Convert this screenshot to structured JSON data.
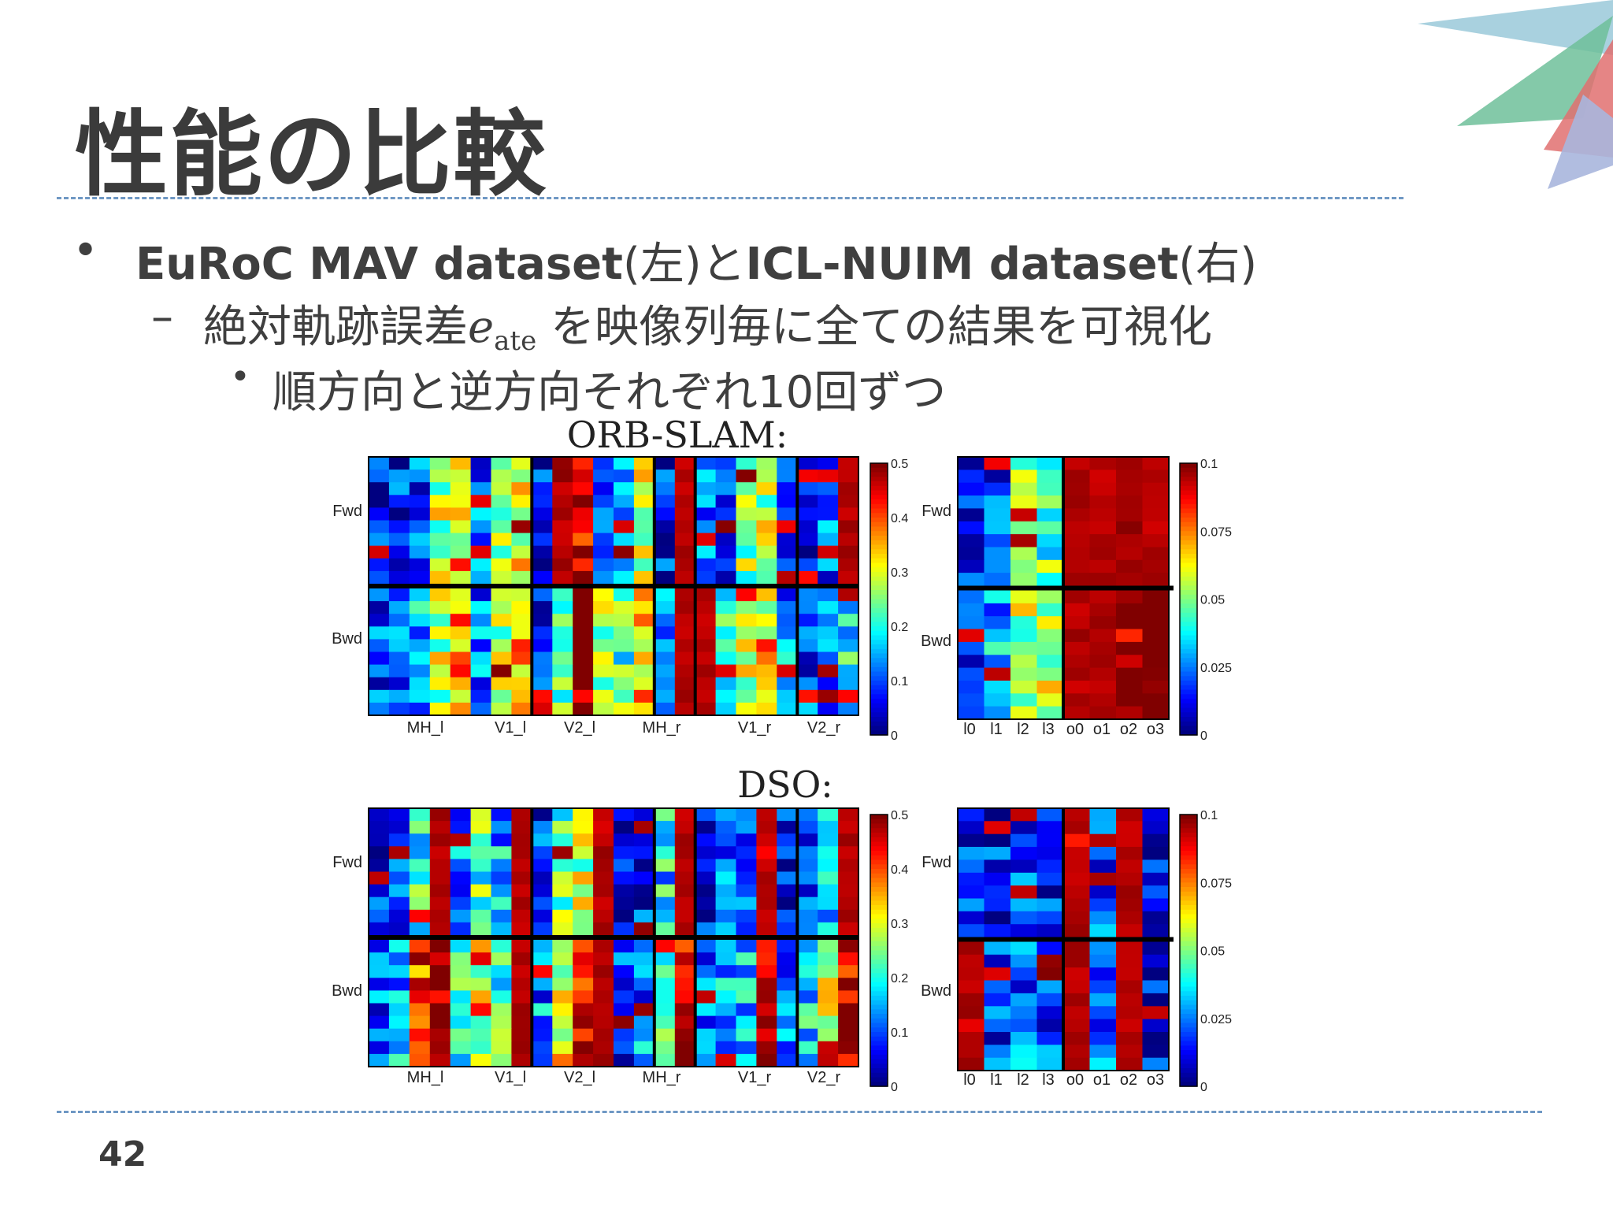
{
  "slide": {
    "title": "性能の比較",
    "bullet1_bold1": "EuRoC MAV dataset",
    "bullet1_norm1": "(左)と",
    "bullet1_bold2": "ICL-NUIM dataset",
    "bullet1_norm2": "(右)",
    "bullet2_pre": "絶対軌跡誤差",
    "bullet2_var": "e",
    "bullet2_sub": "ate",
    "bullet2_post": " を映像列毎に全ての結果を可視化",
    "bullet3": "順方向と逆方向それぞれ10回ずつ",
    "bullet_dot": "•",
    "bullet_dash": "–",
    "slide_number": "42"
  },
  "colors": {
    "title": "#3b3b3b",
    "text": "#3f3f3f",
    "rule": "#6f98c4",
    "deco": [
      "#9ac9d9",
      "#6fbf9a",
      "#e07070",
      "#a9b6dd"
    ]
  },
  "chart_data": [
    {
      "type": "heatmap",
      "title": "ORB-SLAM:",
      "dataset": "EuRoC MAV",
      "rows": [
        "Fwd",
        "Bwd"
      ],
      "column_groups": [
        "MH_l",
        "V1_l",
        "V2_l",
        "MH_r",
        "V1_r",
        "V2_r"
      ],
      "colorbar_ticks": [
        "0.5",
        "0.4",
        "0.3",
        "0.2",
        "0.1",
        "0"
      ],
      "colorbar_range": [
        0,
        0.5
      ],
      "colormap": "jet",
      "fwd_saturated_columns": [
        9,
        15,
        23
      ],
      "bwd_saturated_columns": [
        15,
        16
      ]
    },
    {
      "type": "heatmap",
      "title": "",
      "dataset": "ICL-NUIM",
      "rows": [
        "Fwd",
        "Bwd"
      ],
      "column_groups": [
        "l0",
        "l1",
        "l2",
        "l3",
        "o0",
        "o1",
        "o2",
        "o3"
      ],
      "colorbar_ticks": [
        "0.1",
        "0.075",
        "0.05",
        "0.025",
        "0"
      ],
      "colorbar_range": [
        0,
        0.1
      ],
      "colormap": "jet",
      "fwd_saturated_columns": [
        4,
        5,
        6,
        7
      ],
      "bwd_saturated_columns": [
        4,
        5
      ]
    },
    {
      "type": "heatmap",
      "title": "DSO:",
      "dataset": "EuRoC MAV",
      "rows": [
        "Fwd",
        "Bwd"
      ],
      "column_groups": [
        "MH_l",
        "V1_l",
        "V2_l",
        "MH_r",
        "V1_r",
        "V2_r"
      ],
      "colorbar_ticks": [
        "0.5",
        "0.4",
        "0.3",
        "0.2",
        "0.1",
        "0"
      ],
      "colorbar_range": [
        0,
        0.5
      ],
      "colormap": "jet",
      "fwd_saturated_columns": [
        3,
        7,
        11,
        15,
        19,
        23
      ],
      "bwd_saturated_columns": [
        7,
        11
      ]
    },
    {
      "type": "heatmap",
      "title": "",
      "dataset": "ICL-NUIM",
      "rows": [
        "Fwd",
        "Bwd"
      ],
      "column_groups": [
        "l0",
        "l1",
        "l2",
        "l3",
        "o0",
        "o1",
        "o2",
        "o3"
      ],
      "colorbar_ticks": [
        "0.1",
        "0.075",
        "0.05",
        "0.025",
        "0"
      ],
      "colorbar_range": [
        0,
        0.1
      ],
      "colormap": "jet",
      "fwd_saturated_columns": [
        4,
        6
      ],
      "bwd_saturated_columns": [
        0,
        4,
        6
      ]
    }
  ]
}
